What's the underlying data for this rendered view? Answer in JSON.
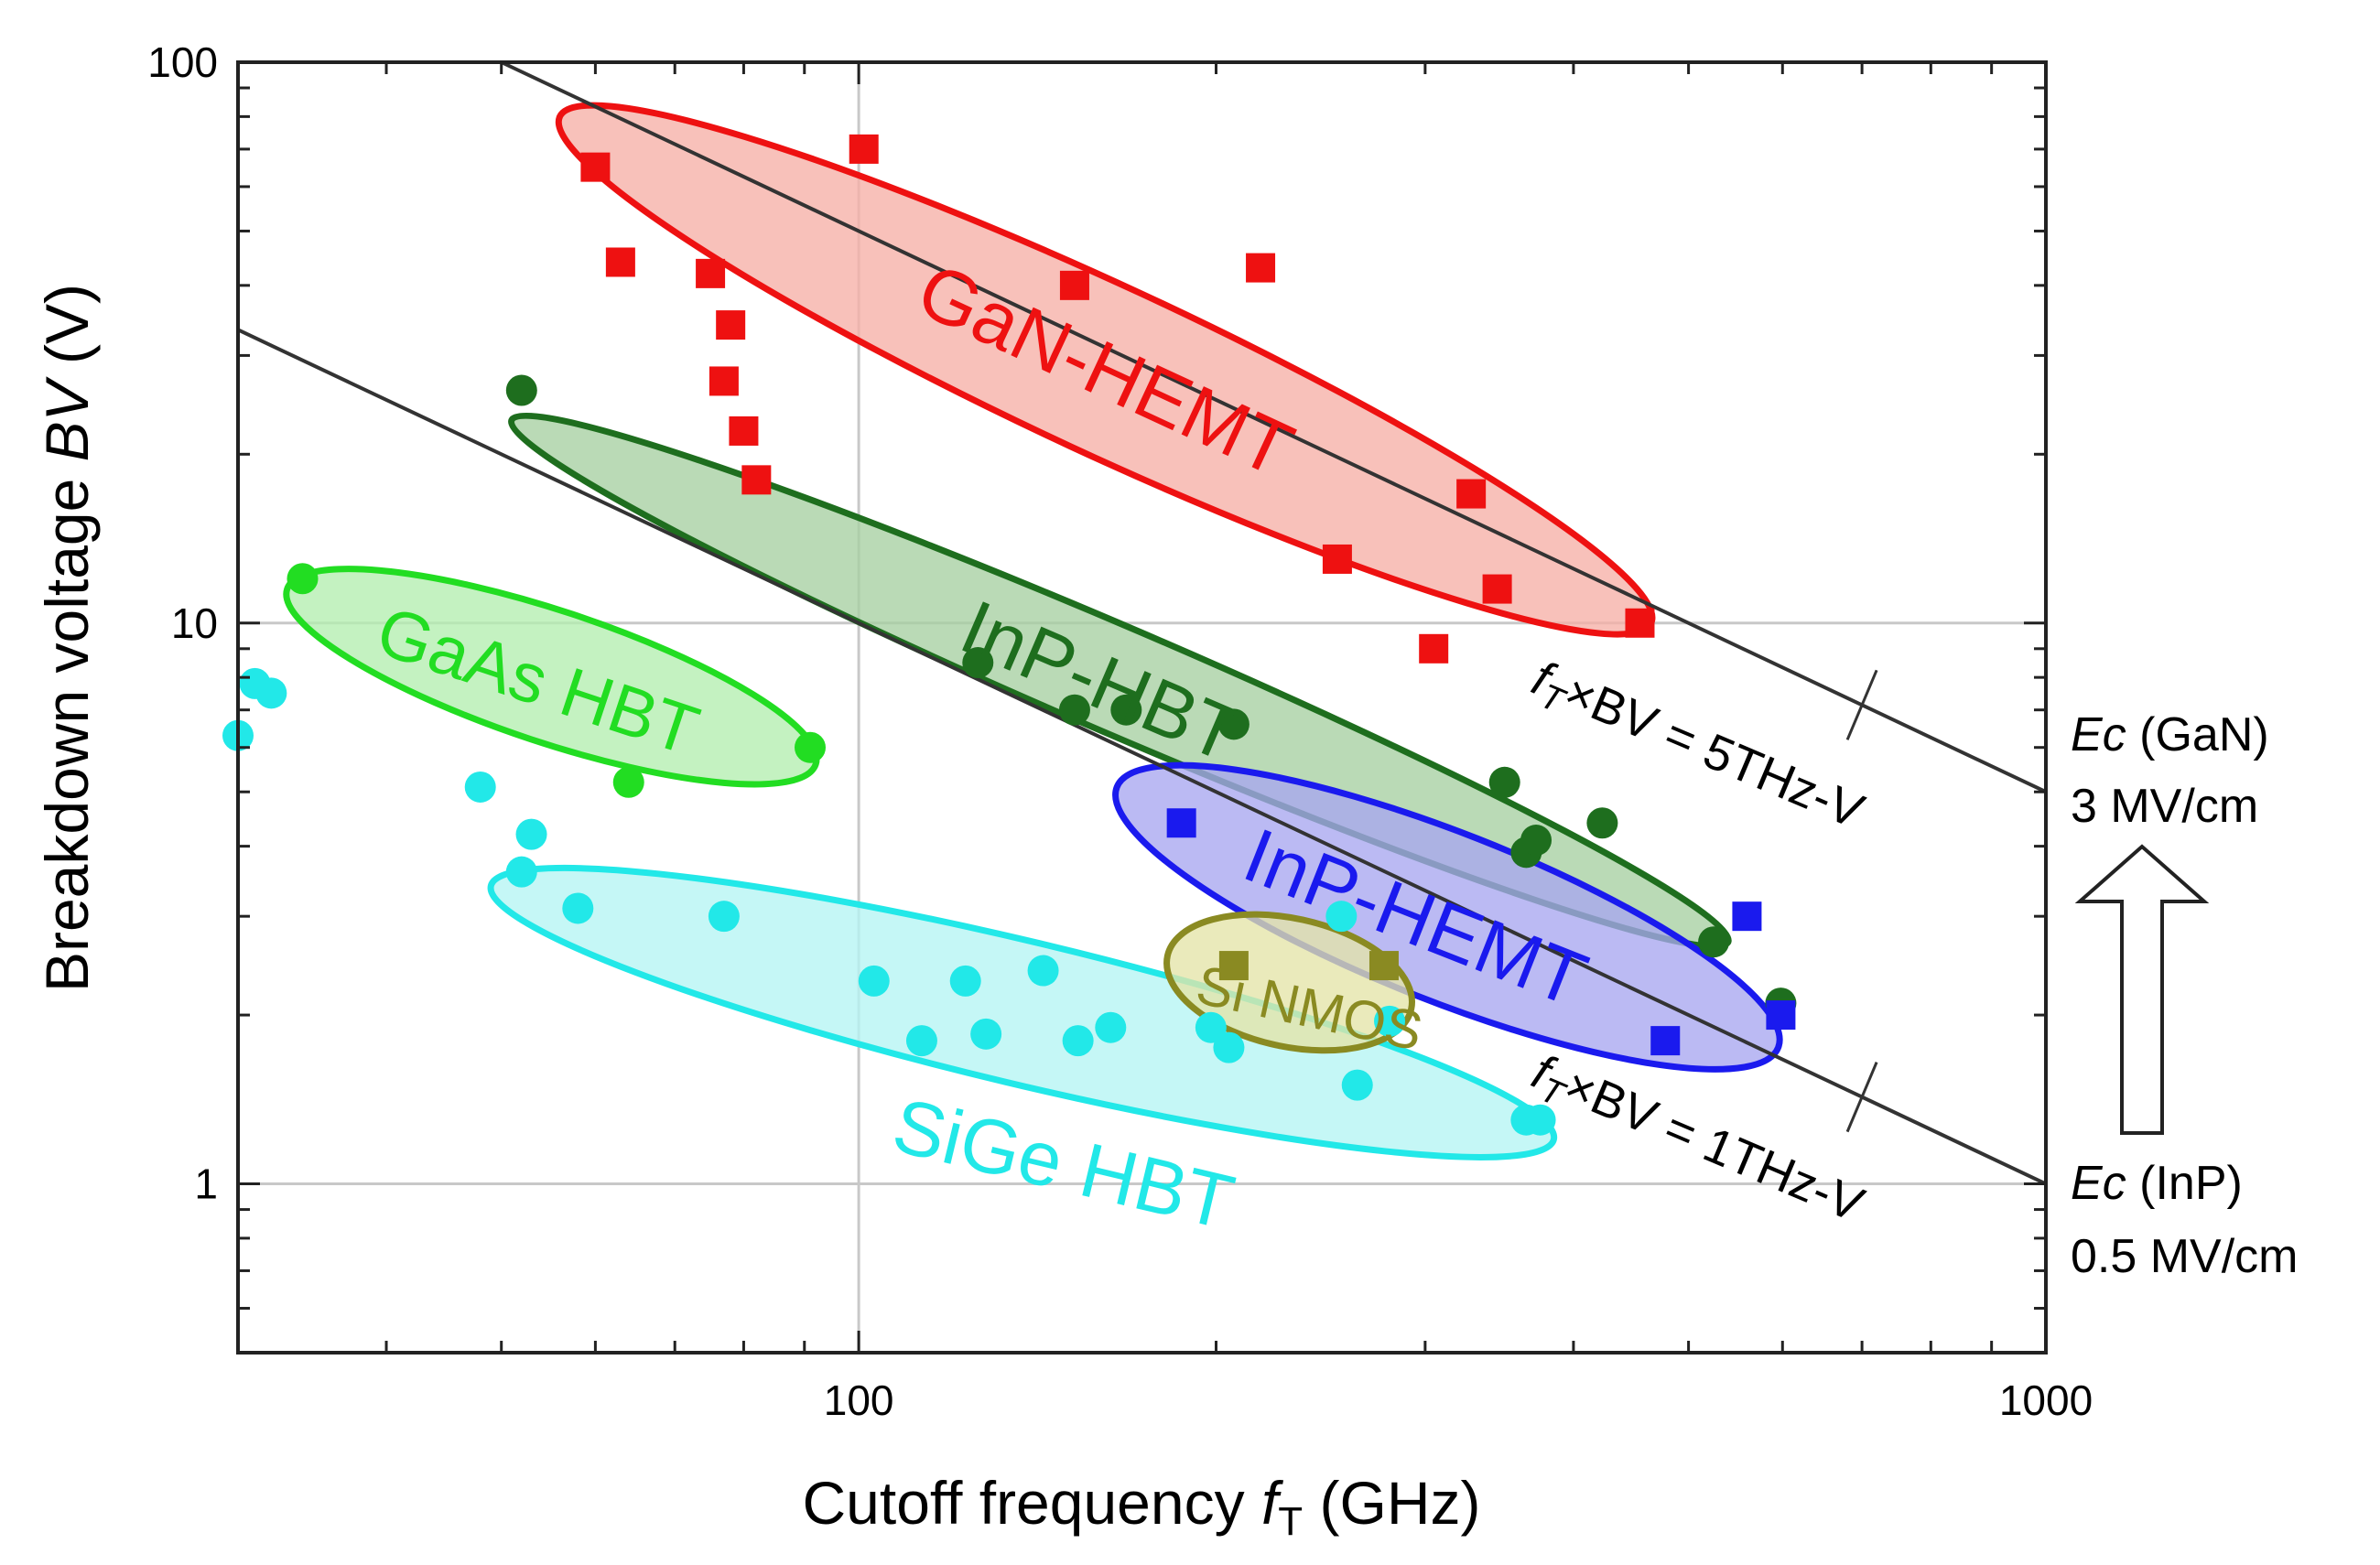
{
  "chart_data": {
    "type": "scatter",
    "title": "",
    "xlabel": "Cutoff frequency",
    "xlabel_symbol": "f",
    "xlabel_subscript": "T",
    "xlabel_unit": "(GHz)",
    "ylabel": "Breakdown voltage",
    "ylabel_symbol": "BV",
    "ylabel_unit": "(V)",
    "x_scale": "log",
    "y_scale": "log",
    "xlim": [
      30,
      1000
    ],
    "ylim": [
      0.5,
      100
    ],
    "x_ticks": [
      {
        "value": 100,
        "label": "100"
      },
      {
        "value": 1000,
        "label": "1000"
      }
    ],
    "y_ticks": [
      {
        "value": 1,
        "label": "1"
      },
      {
        "value": 10,
        "label": "10"
      },
      {
        "value": 100,
        "label": "100"
      }
    ],
    "grid": "major",
    "series": [
      {
        "name": "GaN-HEMT",
        "marker": "square",
        "color": "#ee1111",
        "fill": "#f6b0a6",
        "points": [
          [
            60,
            65
          ],
          [
            63,
            44
          ],
          [
            75,
            42
          ],
          [
            78,
            34
          ],
          [
            77,
            27
          ],
          [
            80,
            22
          ],
          [
            82,
            18
          ],
          [
            101,
            70
          ],
          [
            152,
            40
          ],
          [
            218,
            43
          ],
          [
            253,
            13
          ],
          [
            305,
            9
          ],
          [
            328,
            17
          ],
          [
            345,
            11.5
          ],
          [
            455,
            10
          ]
        ]
      },
      {
        "name": "InP-HBT",
        "marker": "circle",
        "color": "#1e6e1e",
        "fill": "#a6cfa2",
        "points": [
          [
            52,
            26
          ],
          [
            126,
            8.5
          ],
          [
            152,
            7
          ],
          [
            168,
            7
          ],
          [
            207,
            6.6
          ],
          [
            350,
            5.2
          ],
          [
            365,
            3.9
          ],
          [
            372,
            4.1
          ],
          [
            423,
            4.4
          ],
          [
            525,
            2.7
          ],
          [
            598,
            2.1
          ]
        ]
      },
      {
        "name": "GaAs HBT",
        "marker": "circle",
        "color": "#22dd22",
        "fill": "#b3eeb0",
        "points": [
          [
            34,
            12
          ],
          [
            64,
            5.2
          ],
          [
            91,
            6
          ]
        ]
      },
      {
        "name": "SiGe HBT",
        "marker": "circle",
        "color": "#22e8e8",
        "fill": "#b5f5f4",
        "points": [
          [
            30,
            6.3
          ],
          [
            31,
            7.8
          ],
          [
            32,
            7.5
          ],
          [
            48,
            5.1
          ],
          [
            52,
            3.6
          ],
          [
            53,
            4.2
          ],
          [
            58,
            3.1
          ],
          [
            77,
            3
          ],
          [
            103,
            2.3
          ],
          [
            113,
            1.8
          ],
          [
            123,
            2.3
          ],
          [
            128,
            1.85
          ],
          [
            143,
            2.4
          ],
          [
            153,
            1.8
          ],
          [
            163,
            1.9
          ],
          [
            198,
            1.9
          ],
          [
            205,
            1.75
          ],
          [
            255,
            3
          ],
          [
            263,
            1.5
          ],
          [
            280,
            1.95
          ],
          [
            365,
            1.3
          ],
          [
            375,
            1.3
          ]
        ]
      },
      {
        "name": "InP-HEMT",
        "marker": "square",
        "color": "#1a1aee",
        "fill": "#a8a6f0",
        "points": [
          [
            187,
            4.4
          ],
          [
            478,
            1.8
          ],
          [
            560,
            3
          ],
          [
            598,
            2
          ]
        ]
      },
      {
        "name": "Si NMOS",
        "marker": "square",
        "color": "#8a8a22",
        "fill": "#e4e4a8",
        "points": [
          [
            207,
            2.45
          ],
          [
            277,
            2.45
          ]
        ]
      }
    ],
    "regions": [
      {
        "name": "GaN-HEMT",
        "label": "GaN-HEMT",
        "color": "#ee1111",
        "fill": "#f6b0a6"
      },
      {
        "name": "InP-HBT",
        "label": "InP-HBT",
        "color": "#1e6e1e",
        "fill": "#a6cfa2"
      },
      {
        "name": "GaAs HBT",
        "label": "GaAs HBT",
        "color": "#22dd22",
        "fill": "#b3eeb0"
      },
      {
        "name": "SiGe HBT",
        "label": "SiGe HBT",
        "color": "#22e8e8",
        "fill": "#b5f5f4"
      },
      {
        "name": "InP-HEMT",
        "label": "InP-HEMT",
        "color": "#1a1aee",
        "fill": "#a8a6f0"
      },
      {
        "name": "Si NMOS",
        "label": "Si NMOS",
        "color": "#8a8a22",
        "fill": "#e4e4a8"
      }
    ],
    "constant_lines": [
      {
        "name": "5THz-V",
        "product_thz_v": 5,
        "label_prefix": "f",
        "label_sub": "T",
        "label_rest": "×BV = 5THz-V"
      },
      {
        "name": "1THz-V",
        "product_thz_v": 1,
        "label_prefix": "f",
        "label_sub": "T",
        "label_rest": "×BV = 1THz-V"
      }
    ],
    "annotations": {
      "ec_gan": {
        "symbol": "E",
        "sub": "c",
        "rest": " (GaN)",
        "value": "3 MV/cm"
      },
      "ec_inp": {
        "symbol": "E",
        "sub": "c",
        "rest": " (InP)",
        "value": "0.5 MV/cm"
      }
    }
  }
}
